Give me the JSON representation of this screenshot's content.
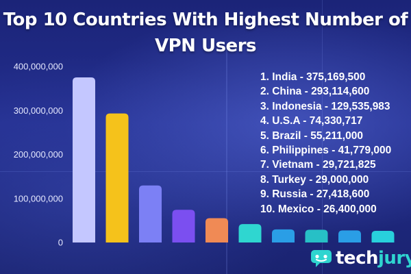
{
  "title_lines": [
    "Top 10 Countries With Highest Number of",
    "VPN Users"
  ],
  "chart_data": {
    "type": "bar",
    "title": "Top 10 Countries With Highest Number of VPN Users",
    "categories": [
      "India",
      "China",
      "Indonesia",
      "U.S.A",
      "Brazil",
      "Philippines",
      "Vietnam",
      "Turkey",
      "Russia",
      "Mexico"
    ],
    "values": [
      375169500,
      293114600,
      129535983,
      74330717,
      55211000,
      41779000,
      29721825,
      29000000,
      27418600,
      26400000
    ],
    "colors": [
      "#c4c7ff",
      "#f5c21b",
      "#7c80f5",
      "#7b4ff0",
      "#f08a55",
      "#2fd6d0",
      "#2a9ee6",
      "#27c0c6",
      "#2a9ee6",
      "#28d0dc"
    ],
    "ylim": [
      0,
      400000000
    ],
    "yticks": [
      0,
      100000000,
      200000000,
      300000000,
      400000000
    ],
    "ytick_labels": [
      "0",
      "100,000,000",
      "200,000,000",
      "300,000,000",
      "400,000,000"
    ],
    "xlabel": "",
    "ylabel": "",
    "grid": false,
    "legend_position": "right"
  },
  "legend_items": [
    "1. India - 375,169,500",
    "2. China - 293,114,600",
    "3. Indonesia - 129,535,983",
    "4. U.S.A - 74,330,717",
    "5. Brazil - 55,211,000",
    "6. Philippines - 41,779,000",
    "7. Vietnam - 29,721,825",
    "8. Turkey - 29,000,000",
    "9. Russia - 27,418,600",
    "10. Mexico - 26,400,000"
  ],
  "brand": {
    "part1": "tech",
    "part2": "jury",
    "icon": "techjury-chat-icon",
    "accent_color": "#2fd5d0"
  }
}
